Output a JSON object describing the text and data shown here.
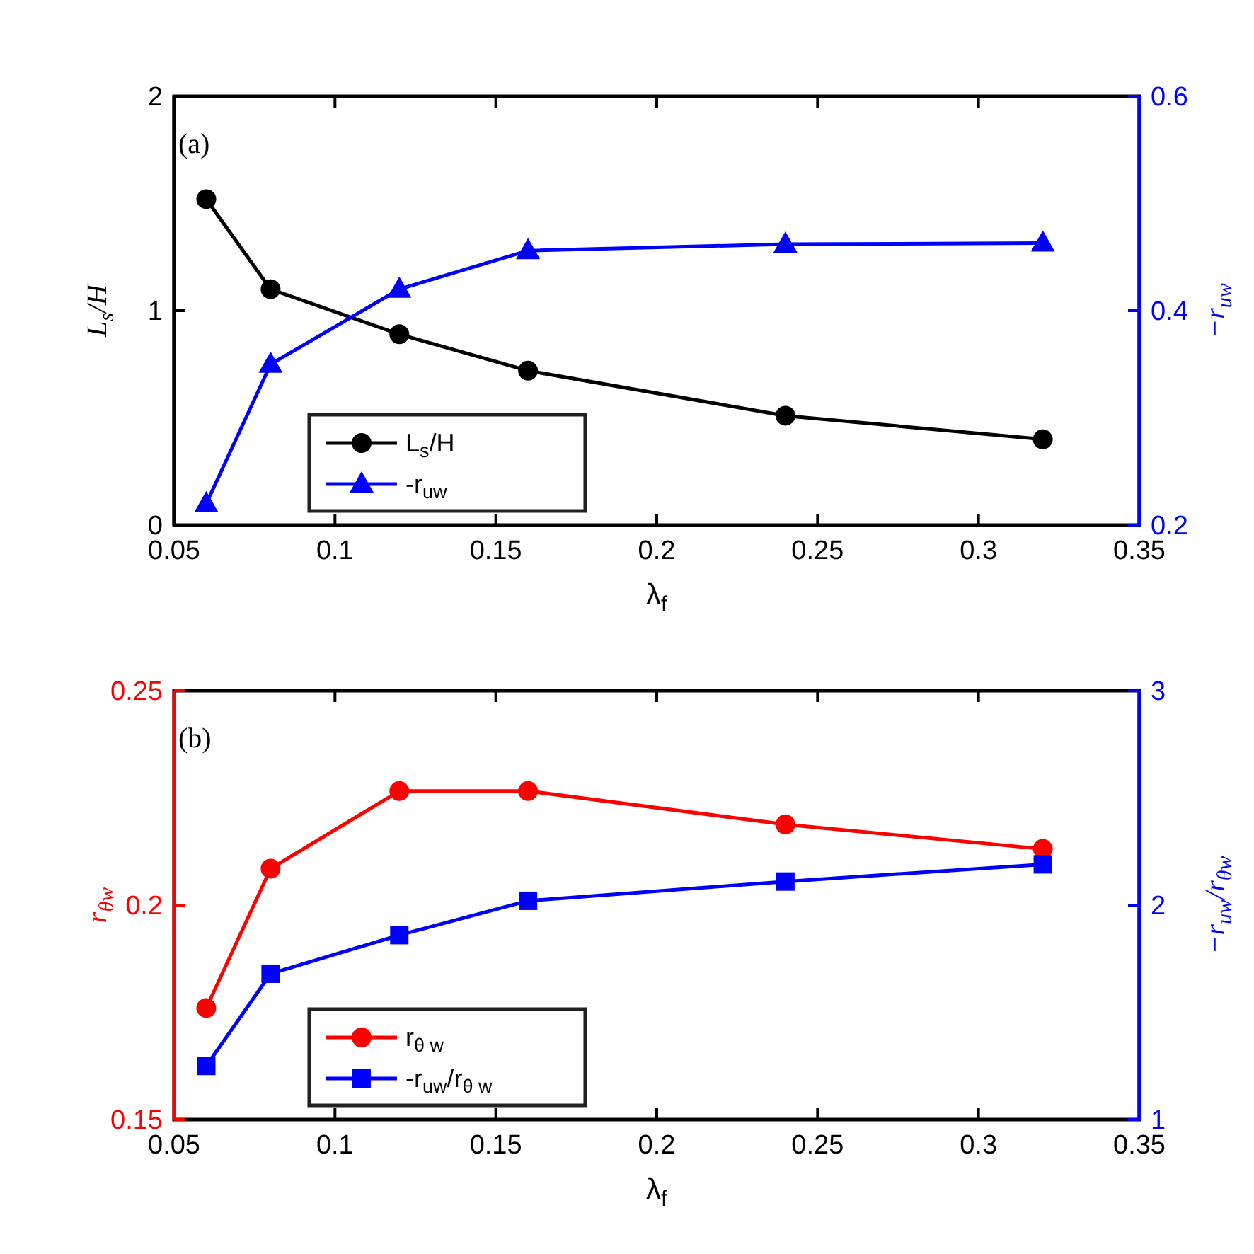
{
  "chart_data": [
    {
      "type": "line",
      "annotations": [
        "(a)"
      ],
      "xlabel": "λ$_{f}$",
      "ylabel": "L$_{s}$/H",
      "y2label": "−r$_{uw}$",
      "x": [
        0.06,
        0.08,
        0.12,
        0.16,
        0.24,
        0.32
      ],
      "xlim": [
        0.05,
        0.35
      ],
      "xticks": [
        0.05,
        0.1,
        0.15,
        0.2,
        0.25,
        0.3,
        0.35
      ],
      "ylim": [
        0,
        2
      ],
      "yticks": [
        0,
        1,
        2
      ],
      "y2lim": [
        0.2,
        0.6
      ],
      "y2ticks": [
        0.2,
        0.4,
        0.6
      ],
      "legend": "bottom left",
      "series": [
        {
          "name": "L$_{s}$/H",
          "color": "#000000",
          "marker": "circle",
          "values": [
            1.52,
            1.1,
            0.89,
            0.72,
            0.51,
            0.4
          ]
        },
        {
          "name": "-r$_{uw}$",
          "color": "#0000ff",
          "marker": "triangle",
          "axis": "y2",
          "values": [
            0.22,
            0.35,
            0.42,
            0.456,
            0.462,
            0.463
          ]
        }
      ]
    },
    {
      "type": "line",
      "annotations": [
        "(b)"
      ],
      "xlabel": "λ$_{f}$",
      "ylabel": "r$_{θw}$",
      "y2label": "−r$_{uw}$/r$_{θw}$",
      "x": [
        0.06,
        0.08,
        0.12,
        0.16,
        0.24,
        0.32
      ],
      "xlim": [
        0.05,
        0.35
      ],
      "xticks": [
        0.05,
        0.1,
        0.15,
        0.2,
        0.25,
        0.3,
        0.35
      ],
      "ylim": [
        0.15,
        0.25
      ],
      "yticks": [
        0.15,
        0.2,
        0.25
      ],
      "y2lim": [
        1,
        3
      ],
      "y2ticks": [
        1,
        2,
        3
      ],
      "legend": "bottom left",
      "series": [
        {
          "name": "r$_{θ w}$",
          "color": "#ff0000",
          "marker": "circle",
          "values": [
            0.176,
            0.2085,
            0.2266,
            0.2266,
            0.2188,
            0.2131
          ]
        },
        {
          "name": "-r$_{uw}$/r$_{θ w}$",
          "color": "#0000ff",
          "marker": "square",
          "axis": "y2",
          "values": [
            1.25,
            1.68,
            1.86,
            2.02,
            2.11,
            2.19
          ]
        }
      ]
    }
  ]
}
